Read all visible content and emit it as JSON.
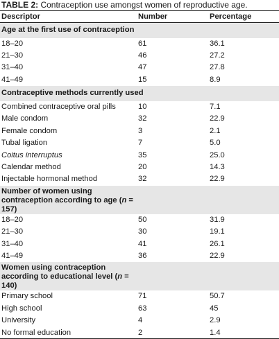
{
  "caption": {
    "label": "TABLE 2:",
    "text": " Contraception use amongst women of reproductive age."
  },
  "columns": [
    "Descriptor",
    "Number",
    "Percentage"
  ],
  "sections": [
    {
      "title": "Age at the first use of contraception",
      "rows": [
        [
          "18–20",
          "61",
          "36.1"
        ],
        [
          "21–30",
          "46",
          "27.2"
        ],
        [
          "31–40",
          "47",
          "27.8"
        ],
        [
          "41–49",
          "15",
          "8.9"
        ]
      ]
    },
    {
      "title": "Contraceptive methods currently used",
      "rows": [
        [
          "Combined contraceptive oral pills",
          "10",
          "7.1"
        ],
        [
          "Male condom",
          "32",
          "22.9"
        ],
        [
          "Female condom",
          "3",
          "2.1"
        ],
        [
          "Tubal ligation",
          "7",
          "5.0"
        ],
        [
          "Coitus interruptus",
          "35",
          "25.0"
        ],
        [
          "Calendar method",
          "20",
          "14.3"
        ],
        [
          "Injectable hormonal method",
          "32",
          "22.9"
        ]
      ]
    },
    {
      "title_pre": "Number of women using contraception according to age (",
      "title_n": "n",
      "title_post": " = 157)",
      "rows": [
        [
          "18–20",
          "50",
          "31.9"
        ],
        [
          "21–30",
          "30",
          "19.1"
        ],
        [
          "31–40",
          "41",
          "26.1"
        ],
        [
          "41–49",
          "36",
          "22.9"
        ]
      ]
    },
    {
      "title_pre": "Women using contraception according to educational level (",
      "title_n": "n",
      "title_post": " = 140)",
      "rows": [
        [
          "Primary school",
          "71",
          "50.7"
        ],
        [
          "High school",
          "63",
          "45"
        ],
        [
          "University",
          "4",
          "2.9"
        ],
        [
          "No formal education",
          "2",
          "1.4"
        ]
      ]
    }
  ]
}
